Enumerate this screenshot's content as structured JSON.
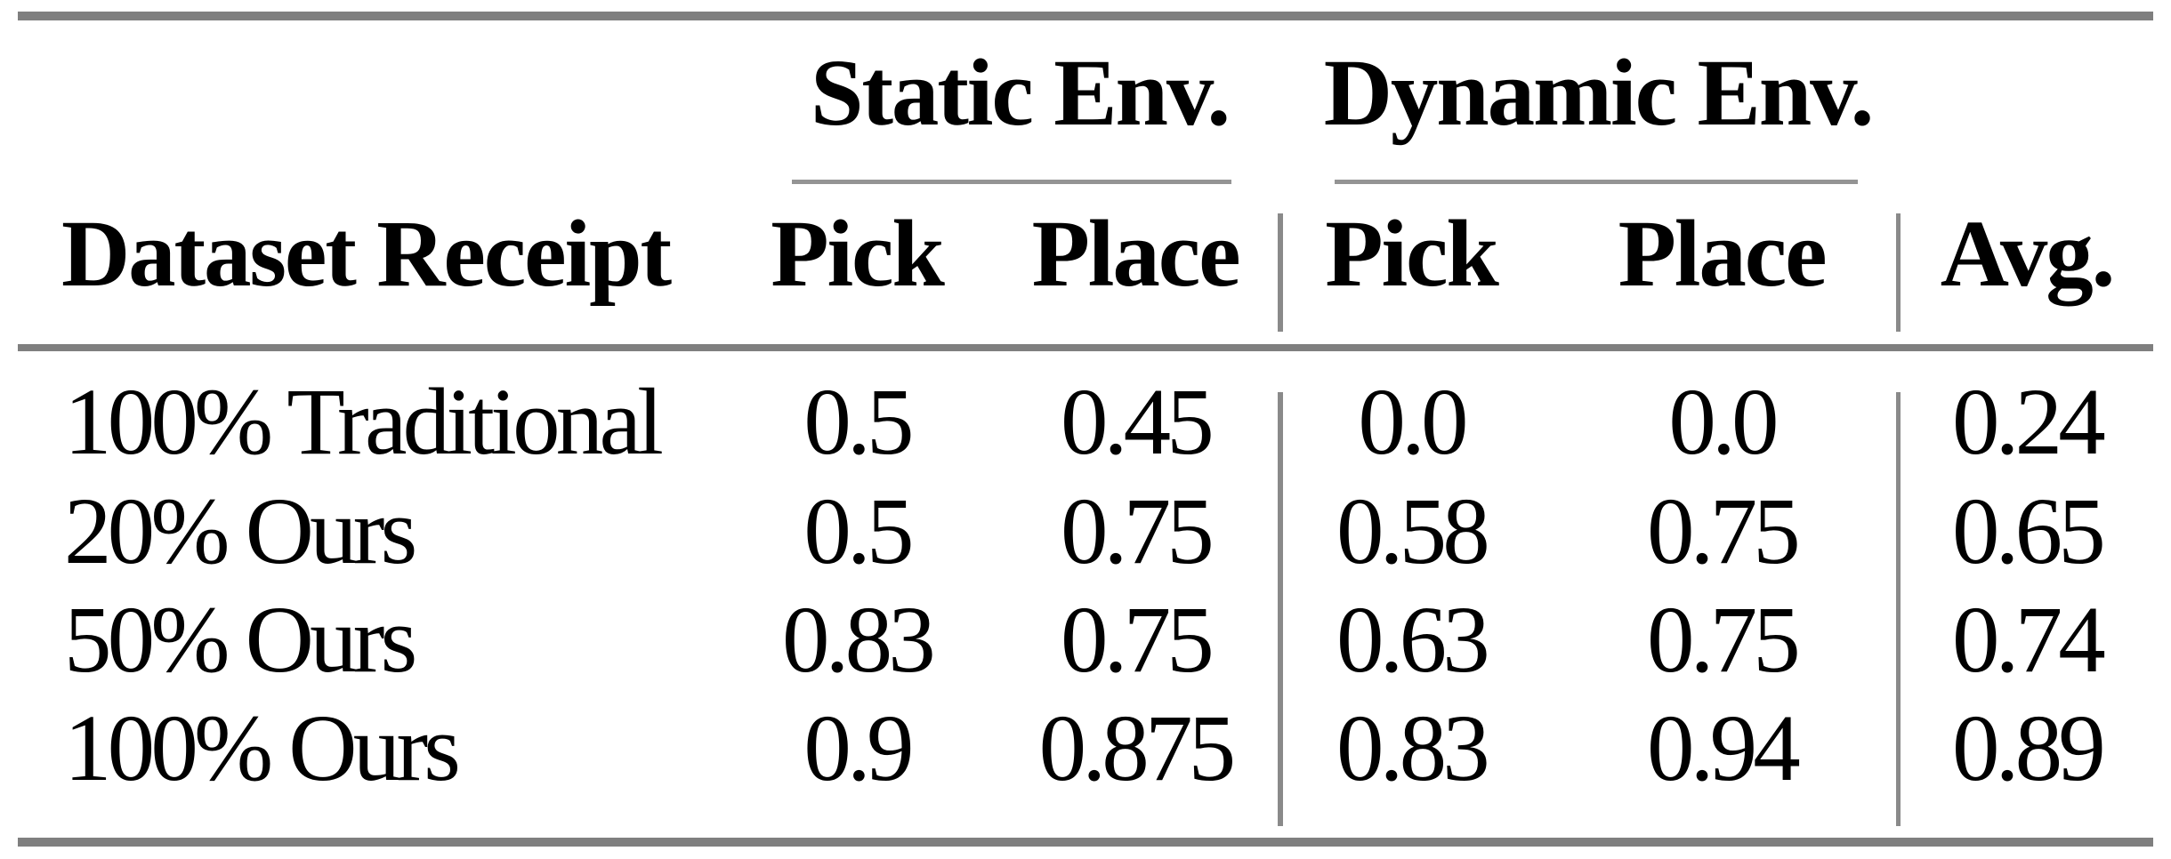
{
  "table": {
    "group_headers": {
      "static": "Static Env.",
      "dynamic": "Dynamic Env."
    },
    "column_headers": {
      "dataset": "Dataset Receipt",
      "static_pick": "Pick",
      "static_place": "Place",
      "dynamic_pick": "Pick",
      "dynamic_place": "Place",
      "avg": "Avg."
    },
    "rows": [
      {
        "label": "100% Traditional",
        "cells": [
          "0.5",
          "0.45",
          "0.0",
          "0.0",
          "0.24"
        ]
      },
      {
        "label": "20% Ours",
        "cells": [
          "0.5",
          "0.75",
          "0.58",
          "0.75",
          "0.65"
        ]
      },
      {
        "label": "50% Ours",
        "cells": [
          "0.83",
          "0.75",
          "0.63",
          "0.75",
          "0.74"
        ]
      },
      {
        "label": "100% Ours",
        "cells": [
          "0.9",
          "0.875",
          "0.83",
          "0.94",
          "0.89"
        ]
      }
    ],
    "colors": {
      "text": "#000000",
      "thick_rule": "#7f7f7f",
      "cmidrule": "#949494",
      "vertical_line": "#8a8a8a",
      "background": "#ffffff"
    }
  }
}
